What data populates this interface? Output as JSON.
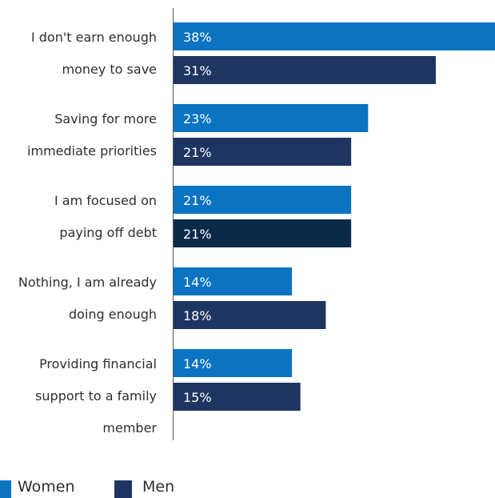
{
  "chart_data": {
    "type": "bar",
    "orientation": "horizontal",
    "categories": [
      [
        "I don't earn enough",
        "money to save"
      ],
      [
        "Saving for more",
        "immediate priorities"
      ],
      [
        "I am focused on",
        "paying off debt"
      ],
      [
        "Nothing, I am already",
        "doing enough"
      ],
      [
        "Providing financial",
        "support to a family",
        "member"
      ]
    ],
    "series": [
      {
        "name": "Women",
        "values": [
          38,
          23,
          21,
          14,
          14
        ],
        "labels": [
          "38%",
          "23%",
          "21%",
          "14%",
          "14%"
        ],
        "color": "#0a73c2"
      },
      {
        "name": "Men",
        "values": [
          31,
          21,
          21,
          18,
          15
        ],
        "labels": [
          "31%",
          "21%",
          "21%",
          "18%",
          "15%"
        ],
        "color": "#1f3561"
      }
    ],
    "highlight_color": "#0b2a4a",
    "xlim": [
      0,
      38
    ],
    "legend_position": "bottom-left",
    "grid": false
  },
  "legend": {
    "women": {
      "label": "Women",
      "color": "#0a73c2"
    },
    "men": {
      "label": "Men",
      "color": "#1f3561"
    }
  }
}
